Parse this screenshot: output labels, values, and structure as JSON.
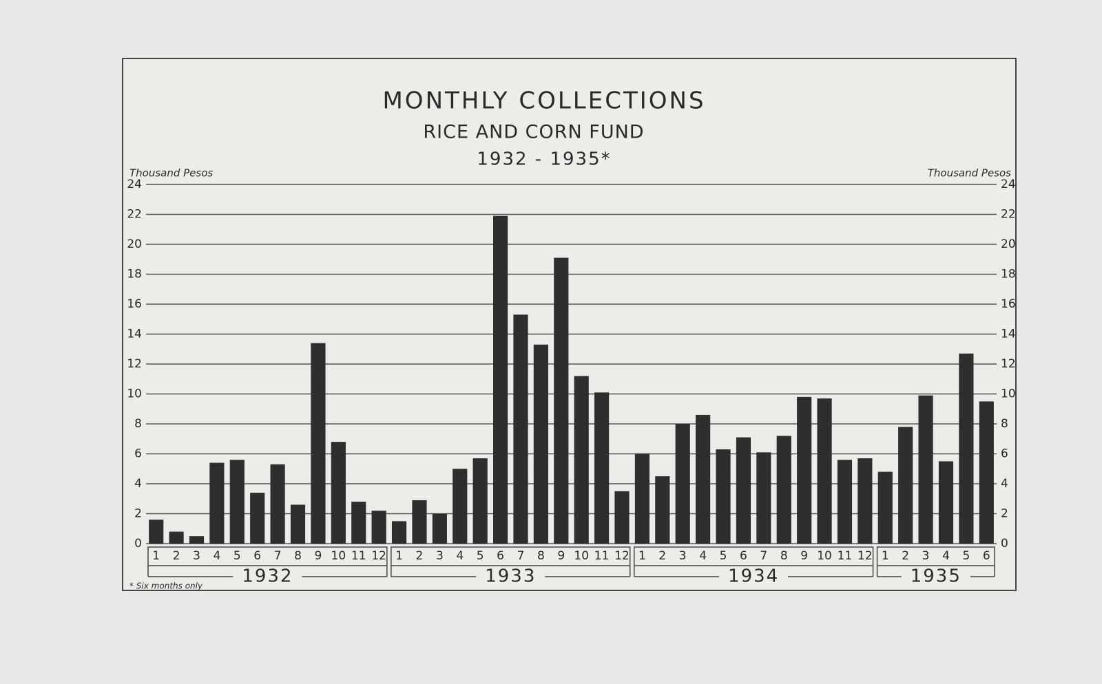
{
  "chart_data": {
    "type": "bar",
    "title": "MONTHLY COLLECTIONS",
    "subtitle": "RICE AND CORN FUND",
    "period": "1932 - 1935*",
    "ylabel": "Thousand Pesos",
    "y2label": "Thousand Pesos",
    "footnote": "* Six months only",
    "groups": [
      {
        "name": "1932",
        "categories": [
          "1",
          "2",
          "3",
          "4",
          "5",
          "6",
          "7",
          "8",
          "9",
          "10",
          "11",
          "12"
        ]
      },
      {
        "name": "1933",
        "categories": [
          "1",
          "2",
          "3",
          "4",
          "5",
          "6",
          "7",
          "8",
          "9",
          "10",
          "11",
          "12"
        ]
      },
      {
        "name": "1934",
        "categories": [
          "1",
          "2",
          "3",
          "4",
          "5",
          "6",
          "7",
          "8",
          "9",
          "10",
          "11",
          "12"
        ]
      },
      {
        "name": "1935",
        "categories": [
          "1",
          "2",
          "3",
          "4",
          "5",
          "6"
        ]
      }
    ],
    "values": [
      1.6,
      0.8,
      0.5,
      5.4,
      5.6,
      3.4,
      5.3,
      2.6,
      13.4,
      6.8,
      2.8,
      2.2,
      1.5,
      2.9,
      2.0,
      5.0,
      5.7,
      21.9,
      15.3,
      13.3,
      19.1,
      11.2,
      10.1,
      3.5,
      6.0,
      4.5,
      8.0,
      8.6,
      6.3,
      7.1,
      6.1,
      7.2,
      9.8,
      9.7,
      5.6,
      5.7,
      4.8,
      7.8,
      9.9,
      5.5,
      12.7,
      9.5
    ],
    "color": "#2e2e2e",
    "ylim": [
      0,
      24
    ],
    "yticks": [
      0,
      2,
      4,
      6,
      8,
      10,
      12,
      14,
      16,
      18,
      20,
      22,
      24
    ],
    "y2lim": [
      0,
      24
    ],
    "y2ticks": [
      0,
      2,
      4,
      6,
      8,
      10,
      12,
      14,
      16,
      18,
      20,
      22,
      24
    ],
    "grid": true
  }
}
